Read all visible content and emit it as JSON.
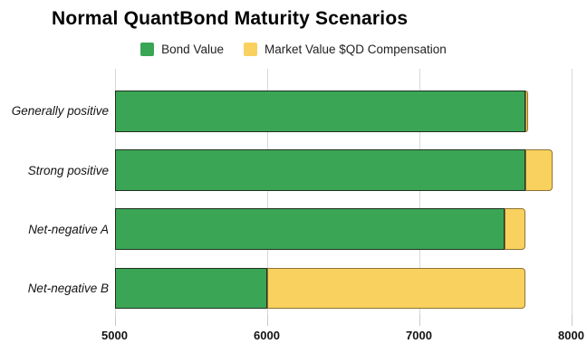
{
  "title": "Normal QuantBond Maturity Scenarios",
  "legend": {
    "items": [
      {
        "label": "Bond Value"
      },
      {
        "label": "Market Value $QD Compensation"
      }
    ]
  },
  "colors": {
    "bond_fill": "#3aa655",
    "bond_border": "#20301f",
    "comp_fill": "#f8d15e",
    "comp_border": "#8f7434",
    "gridline": "#d8d8d8",
    "axis_text": "#131313"
  },
  "chart_data": {
    "type": "bar",
    "orientation": "horizontal",
    "stacked": true,
    "title": "Normal QuantBond Maturity Scenarios",
    "categories": [
      "Generally positive",
      "Strong positive",
      "Net-negative A",
      "Net-negative B"
    ],
    "series": [
      {
        "name": "Bond Value",
        "color": "#3aa655",
        "values": [
          7700,
          7700,
          7560,
          6000
        ]
      },
      {
        "name": "Market Value $QD Compensation",
        "color": "#f8d15e",
        "values": [
          20,
          180,
          140,
          1700
        ]
      }
    ],
    "stack_totals": [
      7720,
      7880,
      7700,
      7700
    ],
    "value_semantics": "Bond Value is the absolute bar end; Market Value $QD Compensation stacks on top of it",
    "xlabel": "",
    "ylabel": "",
    "x_axis": {
      "min": 5000,
      "max": 8000,
      "ticks": [
        5000,
        6000,
        7000,
        8000
      ]
    },
    "grid": "vertical",
    "legend_position": "top"
  }
}
